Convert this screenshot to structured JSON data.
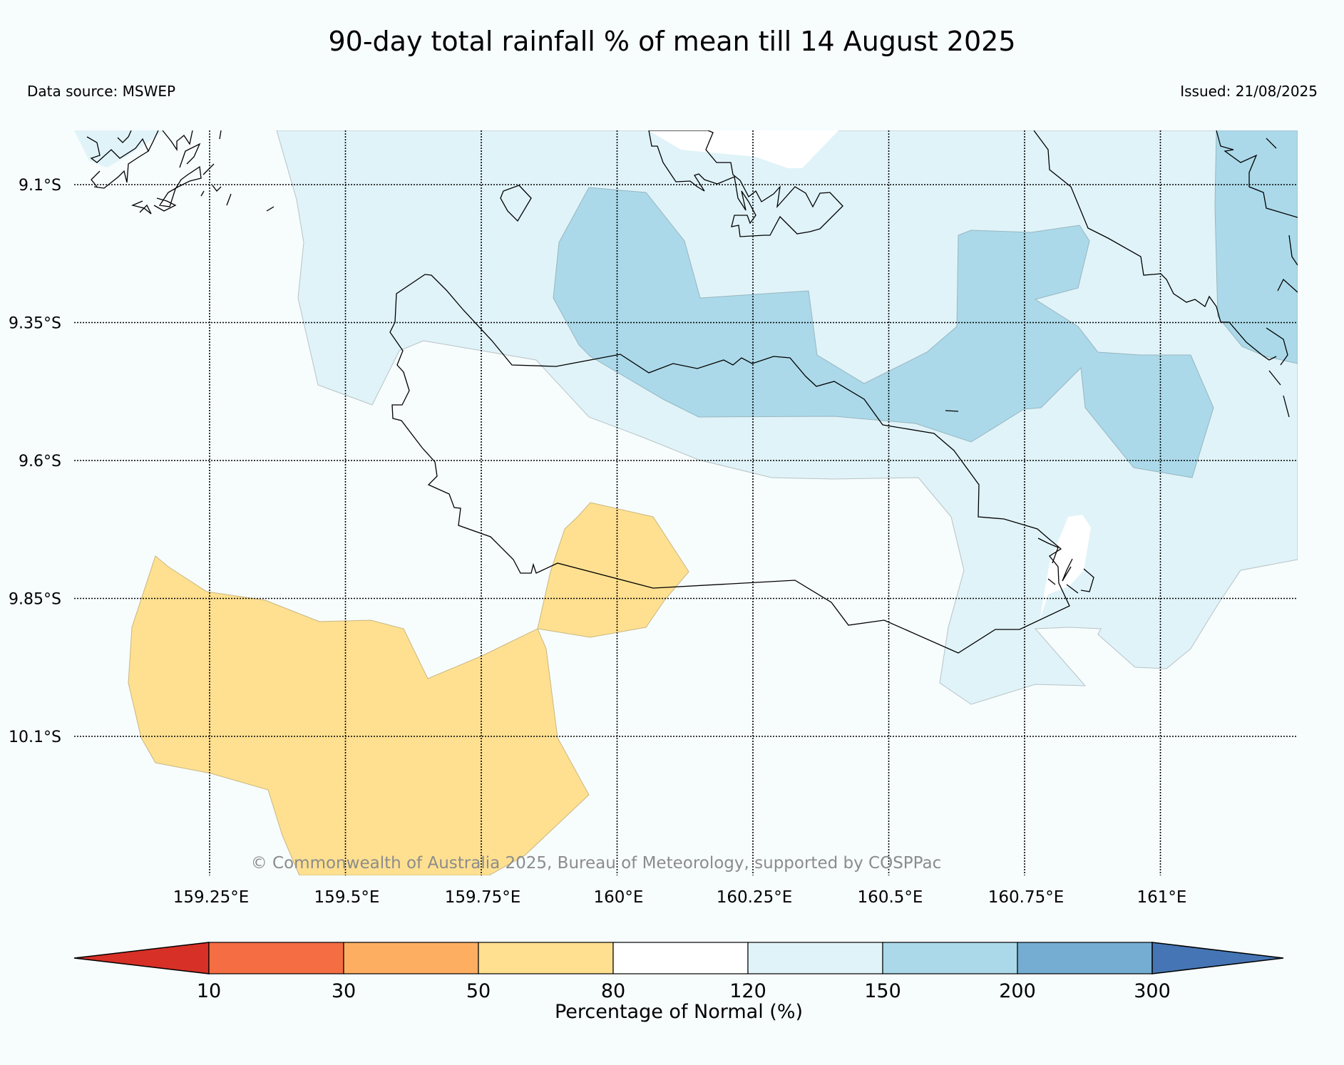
{
  "title": "90-day total rainfall % of mean till 14 August 2025",
  "source": "Data source: MSWEP",
  "issued": "Issued: 21/08/2025",
  "copyright": "© Commonwealth of Australia 2025, Bureau of Meteorology, supported by COSPPac",
  "latitudes": [
    {
      "value": -9.1,
      "label": "9.1°S"
    },
    {
      "value": -9.35,
      "label": "9.35°S"
    },
    {
      "value": -9.6,
      "label": "9.6°S"
    },
    {
      "value": -9.85,
      "label": "9.85°S"
    },
    {
      "value": -10.1,
      "label": "10.1°S"
    }
  ],
  "longitudes": [
    {
      "value": 159.25,
      "label": "159.25°E"
    },
    {
      "value": 159.5,
      "label": "159.5°E"
    },
    {
      "value": 159.75,
      "label": "159.75°E"
    },
    {
      "value": 160.0,
      "label": "160°E"
    },
    {
      "value": 160.25,
      "label": "160.25°E"
    },
    {
      "value": 160.5,
      "label": "160.5°E"
    },
    {
      "value": 160.75,
      "label": "160.75°E"
    },
    {
      "value": 161.0,
      "label": "161°E"
    }
  ],
  "colorbar": {
    "title": "Percentage of Normal (%)",
    "ticks": [
      "10",
      "30",
      "50",
      "80",
      "120",
      "150",
      "200",
      "300"
    ],
    "colors": {
      "below_10": "#d73027",
      "10_30": "#f46d43",
      "30_50": "#fdae61",
      "50_80": "#fee090",
      "80_120": "#ffffff",
      "120_150": "#e0f3f8",
      "150_200": "#abd9e9",
      "200_300": "#74add1",
      "above_300": "#4575b4"
    }
  },
  "map_colors": {
    "background": "#f7fcfd",
    "coastline": "#000000",
    "grid": "#000000"
  }
}
